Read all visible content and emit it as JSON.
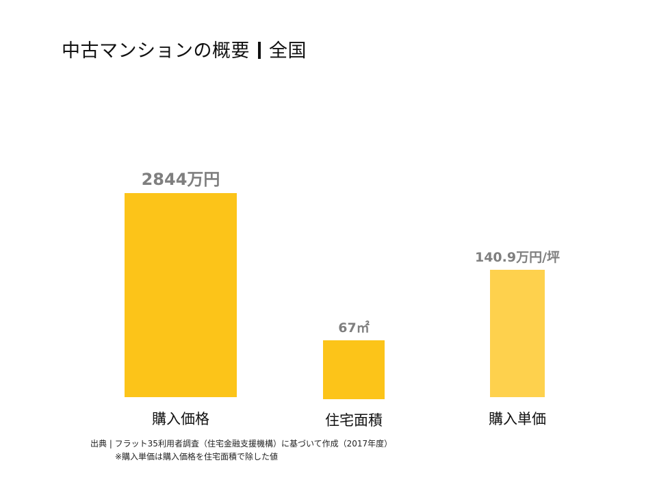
{
  "title": {
    "main": "中古マンションの概要",
    "region": "全国"
  },
  "colors": {
    "bar_primary": "#FCC419",
    "bar_light": "#FED14D",
    "value_label": "#7F7F7F",
    "category_label": "#111111"
  },
  "chart_data": {
    "type": "bar",
    "title": "中古マンションの概要 | 全国",
    "categories": [
      "購入価格",
      "住宅面積",
      "購入単価"
    ],
    "series": [
      {
        "values": [
          2844,
          67,
          140.9
        ],
        "display_labels": [
          "2844万円",
          "67㎡",
          "140.9万円/坪"
        ],
        "units": [
          "万円",
          "㎡",
          "万円/坪"
        ]
      }
    ],
    "note": "each bar uses its own unit scale",
    "grid": false,
    "legend": "none"
  },
  "footnotes": {
    "source": "出典 | フラット35利用者調査（住宅金融支援機構）に基づいて作成（2017年度）",
    "note": "※購入単価は購入価格を住宅面積で除した値"
  }
}
